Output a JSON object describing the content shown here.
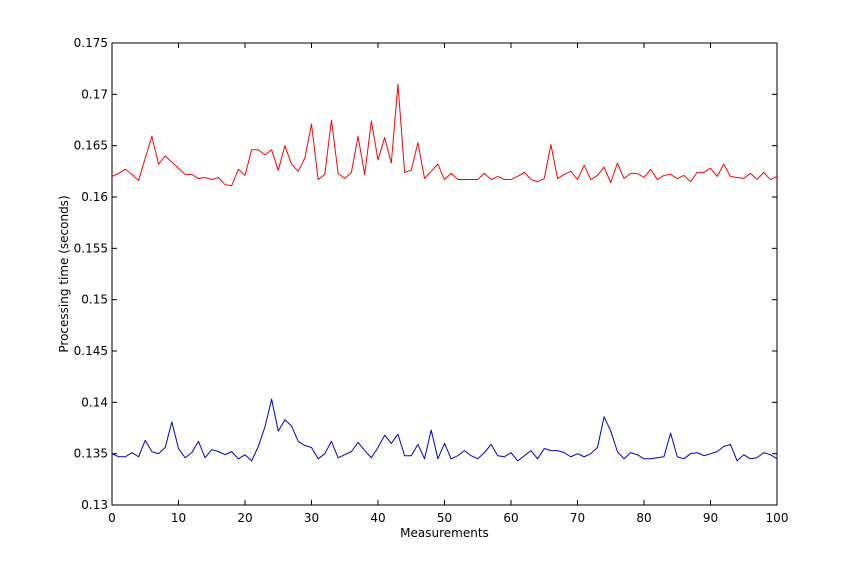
{
  "chart_data": {
    "type": "line",
    "title": "",
    "xlabel": "Measurements",
    "ylabel": "Processing time (seconds)",
    "xlim": [
      0,
      100
    ],
    "ylim": [
      0.13,
      0.175
    ],
    "x_ticks": [
      0,
      10,
      20,
      30,
      40,
      50,
      60,
      70,
      80,
      90,
      100
    ],
    "y_ticks": [
      0.13,
      0.135,
      0.14,
      0.145,
      0.15,
      0.155,
      0.16,
      0.165,
      0.17,
      0.175
    ],
    "x_tick_labels": [
      "0",
      "10",
      "20",
      "30",
      "40",
      "50",
      "60",
      "70",
      "80",
      "90",
      "100"
    ],
    "y_tick_labels": [
      "0.13",
      "0.135",
      "0.14",
      "0.145",
      "0.15",
      "0.155",
      "0.16",
      "0.165",
      "0.17",
      "0.175"
    ],
    "grid": false,
    "legend": "none",
    "x": [
      0,
      1,
      2,
      3,
      4,
      5,
      6,
      7,
      8,
      9,
      10,
      11,
      12,
      13,
      14,
      15,
      16,
      17,
      18,
      19,
      20,
      21,
      22,
      23,
      24,
      25,
      26,
      27,
      28,
      29,
      30,
      31,
      32,
      33,
      34,
      35,
      36,
      37,
      38,
      39,
      40,
      41,
      42,
      43,
      44,
      45,
      46,
      47,
      48,
      49,
      50,
      51,
      52,
      53,
      54,
      55,
      56,
      57,
      58,
      59,
      60,
      61,
      62,
      63,
      64,
      65,
      66,
      67,
      68,
      69,
      70,
      71,
      72,
      73,
      74,
      75,
      76,
      77,
      78,
      79,
      80,
      81,
      82,
      83,
      84,
      85,
      86,
      87,
      88,
      89,
      90,
      91,
      92,
      93,
      94,
      95,
      96,
      97,
      98,
      99,
      100
    ],
    "series": [
      {
        "color": "#ff0000",
        "values": [
          0.162,
          0.1623,
          0.1627,
          0.1622,
          0.1616,
          0.1638,
          0.1659,
          0.1632,
          0.164,
          0.1634,
          0.1628,
          0.1622,
          0.1622,
          0.1618,
          0.1619,
          0.1617,
          0.1619,
          0.1612,
          0.1611,
          0.1627,
          0.1621,
          0.1646,
          0.1646,
          0.1641,
          0.1646,
          0.1626,
          0.165,
          0.1632,
          0.1625,
          0.1638,
          0.1671,
          0.1617,
          0.1622,
          0.1675,
          0.1623,
          0.1618,
          0.1624,
          0.1659,
          0.1622,
          0.1674,
          0.1636,
          0.1658,
          0.1633,
          0.171,
          0.1624,
          0.1626,
          0.1653,
          0.1618,
          0.1625,
          0.1632,
          0.1617,
          0.1623,
          0.1617,
          0.1617,
          0.1617,
          0.1617,
          0.1623,
          0.1617,
          0.162,
          0.1617,
          0.1617,
          0.162,
          0.1624,
          0.1617,
          0.1615,
          0.1618,
          0.1651,
          0.1618,
          0.1622,
          0.1625,
          0.1617,
          0.1631,
          0.1617,
          0.1621,
          0.1629,
          0.1614,
          0.1633,
          0.1618,
          0.1623,
          0.1623,
          0.1619,
          0.1627,
          0.1617,
          0.1621,
          0.1622,
          0.1618,
          0.1621,
          0.1615,
          0.1624,
          0.1624,
          0.1628,
          0.162,
          0.1632,
          0.162,
          0.1619,
          0.1618,
          0.1623,
          0.1617,
          0.1624,
          0.1617,
          0.162
        ]
      },
      {
        "color": "#0000cc",
        "values": [
          0.135,
          0.1347,
          0.1347,
          0.1351,
          0.1347,
          0.1363,
          0.1352,
          0.135,
          0.1356,
          0.1381,
          0.1355,
          0.1346,
          0.1351,
          0.1362,
          0.1346,
          0.1354,
          0.1352,
          0.1349,
          0.1352,
          0.1345,
          0.1349,
          0.1343,
          0.1357,
          0.1376,
          0.1403,
          0.1372,
          0.1383,
          0.1377,
          0.1362,
          0.1358,
          0.1356,
          0.1345,
          0.135,
          0.1362,
          0.1346,
          0.1349,
          0.1352,
          0.1361,
          0.1353,
          0.1346,
          0.1356,
          0.1368,
          0.136,
          0.1369,
          0.1348,
          0.1348,
          0.1359,
          0.1345,
          0.1373,
          0.1345,
          0.136,
          0.1345,
          0.1348,
          0.1353,
          0.1348,
          0.1345,
          0.1351,
          0.1359,
          0.1348,
          0.1347,
          0.1351,
          0.1343,
          0.1348,
          0.1353,
          0.1345,
          0.1355,
          0.1353,
          0.1353,
          0.1351,
          0.1347,
          0.135,
          0.1347,
          0.135,
          0.1356,
          0.1386,
          0.1372,
          0.1352,
          0.1345,
          0.1351,
          0.1349,
          0.1345,
          0.1345,
          0.1346,
          0.1347,
          0.137,
          0.1347,
          0.1345,
          0.135,
          0.1351,
          0.1348,
          0.135,
          0.1352,
          0.1357,
          0.1359,
          0.1343,
          0.1349,
          0.1345,
          0.1346,
          0.1351,
          0.1349,
          0.1345
        ]
      }
    ]
  }
}
